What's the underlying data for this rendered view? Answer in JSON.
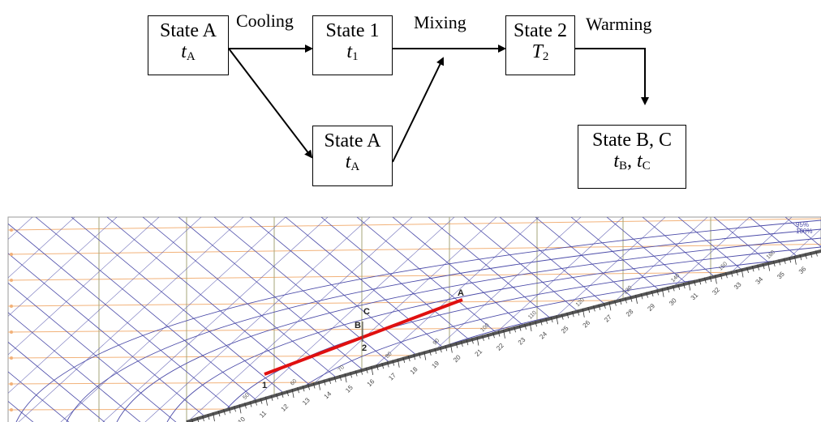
{
  "flow": {
    "state_a_top": {
      "name": "State A",
      "var": "t",
      "sub": "A"
    },
    "state_1": {
      "name": "State 1",
      "var": "t",
      "sub": "1"
    },
    "state_2": {
      "name": "State 2",
      "var": "T",
      "sub": "2"
    },
    "state_a_bottom": {
      "name": "State A",
      "var": "t",
      "sub": "A"
    },
    "state_bc": {
      "name": "State B, C",
      "var1": "t",
      "sub1": "B",
      "sep": ", ",
      "var2": "t",
      "sub2": "C"
    },
    "labels": {
      "cooling": "Cooling",
      "mixing": "Mixing",
      "warming": "Warming"
    }
  },
  "chart": {
    "points": {
      "A": "A",
      "C": "C",
      "B": "B",
      "two": "2",
      "one": "1"
    },
    "rh_labels": [
      "95%",
      "100%"
    ],
    "colors": {
      "process_line": "#e01010",
      "enthalpy": "#4a4aa8",
      "grid": "#a4a67a",
      "humidity": "#f2b27a",
      "saturation": "#555555"
    },
    "scale_numbers": [
      "10",
      "11",
      "12",
      "13",
      "14",
      "15",
      "16",
      "17",
      "18",
      "19",
      "20",
      "21",
      "22",
      "23",
      "24",
      "25",
      "26",
      "27",
      "28",
      "29",
      "30",
      "31",
      "32",
      "33",
      "34",
      "35",
      "36"
    ],
    "small_numbers": [
      "50",
      "60",
      "70",
      "80",
      "90",
      "100",
      "110",
      "120",
      "130",
      "140",
      "150",
      "160"
    ]
  }
}
